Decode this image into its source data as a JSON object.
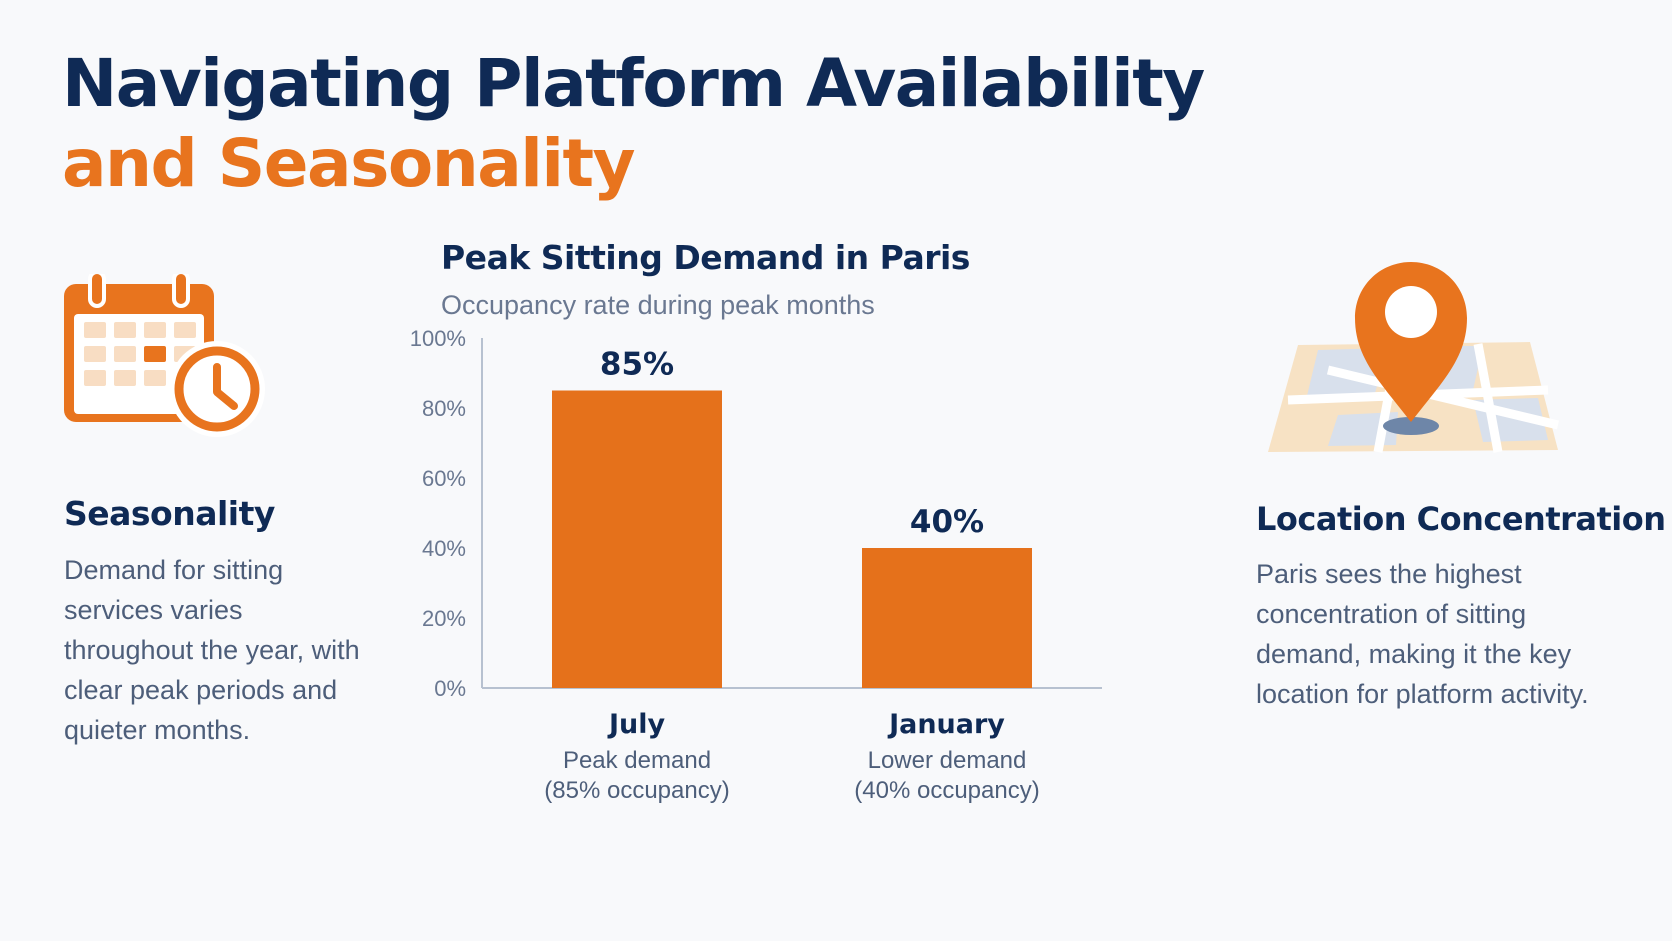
{
  "title": {
    "line1": "Navigating Platform Availability",
    "line2": "and Seasonality"
  },
  "left_panel": {
    "icon": "calendar-clock-icon",
    "heading": "Seasonality",
    "text": "Demand for sitting services varies throughout the year, with clear peak periods and quieter months."
  },
  "right_panel": {
    "icon": "map-pin-icon",
    "heading": "Location Concentration",
    "text": "Paris sees the highest concentration of sitting demand, making it the key location for platform activity."
  },
  "colors": {
    "navy": "#0f2a55",
    "orange": "#e8741e",
    "bar": "#e5711b",
    "muted_text": "#4d5e7a",
    "axis": "#b7c1d0"
  },
  "chart_data": {
    "type": "bar",
    "title": "Peak Sitting Demand in Paris",
    "subtitle": "Occupancy rate during peak months",
    "categories": [
      "July",
      "January"
    ],
    "category_descriptions": [
      [
        "Peak demand",
        "(85% occupancy)"
      ],
      [
        "Lower demand",
        "(40% occupancy)"
      ]
    ],
    "values": [
      85,
      40
    ],
    "value_labels": [
      "85%",
      "40%"
    ],
    "ylim": [
      0,
      100
    ],
    "yticks": [
      0,
      20,
      40,
      60,
      80,
      100
    ],
    "ytick_labels": [
      "0%",
      "20%",
      "40%",
      "60%",
      "80%",
      "100%"
    ],
    "xlabel": "",
    "ylabel": "",
    "grid": false,
    "legend": "none"
  }
}
